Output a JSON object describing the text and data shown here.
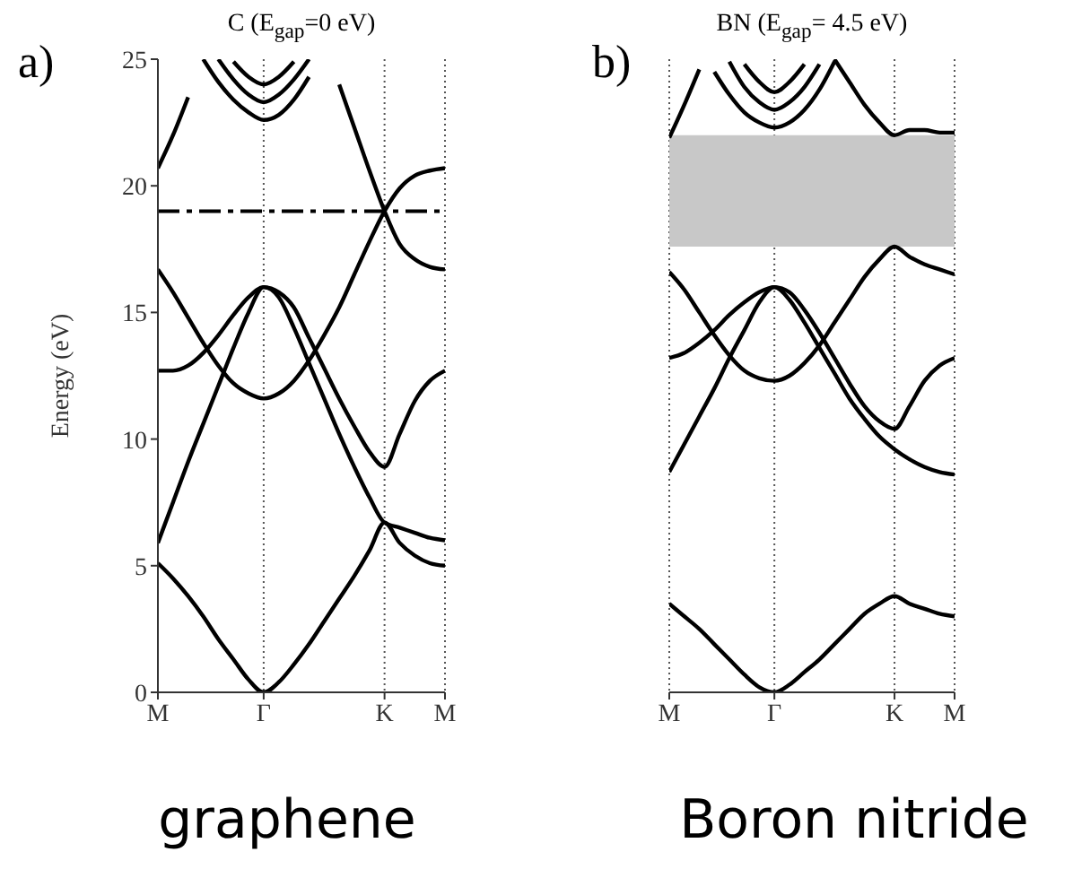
{
  "chart_data": [
    {
      "type": "line",
      "title": "C (E$_{gap}$=0 eV)",
      "ylabel": "Energy (eV)",
      "annotations": [
        "a)",
        "graphene"
      ],
      "categories": [
        "M",
        null,
        null,
        null,
        null,
        null,
        null,
        "Γ",
        null,
        null,
        null,
        null,
        null,
        null,
        null,
        "K",
        null,
        null,
        null,
        "M"
      ],
      "ylim": [
        0,
        25
      ],
      "yticks": [
        0,
        5,
        10,
        15,
        20,
        25
      ],
      "grid": "x",
      "marker": "none",
      "ref_lines": [
        {
          "axis": "y",
          "value": 19,
          "color": "#000000",
          "line_style": "dashed"
        }
      ],
      "series": [
        {
          "color": "#000000",
          "values": [
            5.1,
            4.5,
            3.8,
            3.0,
            2.1,
            1.3,
            0.5,
            0,
            0.4,
            1.1,
            1.9,
            2.8,
            3.7,
            4.6,
            5.6,
            6.7,
            5.9,
            5.4,
            5.1,
            5.0
          ]
        },
        {
          "color": "#000000",
          "values": [
            5.9,
            7.5,
            9.1,
            10.6,
            12.1,
            13.6,
            15.0,
            16.0,
            15.6,
            14.4,
            13.0,
            11.6,
            10.2,
            8.9,
            7.7,
            6.7,
            6.5,
            6.3,
            6.1,
            6.0
          ]
        },
        {
          "color": "#000000",
          "values": [
            12.7,
            12.7,
            12.9,
            13.4,
            14.1,
            14.9,
            15.6,
            16.0,
            15.8,
            15.2,
            14.0,
            12.8,
            11.6,
            10.5,
            9.5,
            8.9,
            10.2,
            11.5,
            12.3,
            12.7
          ]
        },
        {
          "color": "#000000",
          "values": [
            16.7,
            15.8,
            14.8,
            13.8,
            12.9,
            12.2,
            11.8,
            11.6,
            11.8,
            12.3,
            13.1,
            14.1,
            15.2,
            16.5,
            17.8,
            19.0,
            19.9,
            20.4,
            20.6,
            20.7
          ]
        },
        {
          "color": "#000000",
          "values": [
            20.7,
            22.0,
            23.5,
            null,
            null,
            null,
            null,
            null,
            null,
            null,
            null,
            null,
            24.0,
            22.3,
            20.6,
            19.0,
            17.7,
            17.1,
            16.8,
            16.7
          ]
        },
        {
          "color": "#000000",
          "values": [
            null,
            null,
            null,
            25,
            24.1,
            23.4,
            22.9,
            22.6,
            22.8,
            23.4,
            24.3,
            null,
            null,
            null,
            null,
            null,
            null,
            null,
            null,
            null
          ]
        },
        {
          "color": "#000000",
          "values": [
            null,
            null,
            null,
            null,
            25,
            24.2,
            23.6,
            23.3,
            23.6,
            24.2,
            25,
            null,
            null,
            null,
            null,
            null,
            null,
            null,
            null,
            null
          ]
        },
        {
          "color": "#000000",
          "values": [
            null,
            null,
            null,
            null,
            null,
            24.9,
            24.3,
            24.0,
            24.3,
            24.9,
            null,
            null,
            null,
            null,
            null,
            null,
            null,
            null,
            null,
            null
          ]
        }
      ]
    },
    {
      "type": "line",
      "title": "BN (E$_{gap}$= 4.5 eV)",
      "annotations": [
        "b)",
        "Boron nitride"
      ],
      "categories": [
        "M",
        null,
        null,
        null,
        null,
        null,
        null,
        "Γ",
        null,
        null,
        null,
        null,
        null,
        null,
        null,
        "K",
        null,
        null,
        null,
        "M"
      ],
      "ylim": [
        0,
        25
      ],
      "yticks": [
        0,
        5,
        10,
        15,
        20,
        25
      ],
      "tick_labels": "x",
      "grid": "x",
      "marker": "none",
      "bands": [
        {
          "axis": "y",
          "from": 17.6,
          "to": 22.0,
          "color": "#c8c8c8"
        }
      ],
      "series": [
        {
          "color": "#000000",
          "values": [
            3.5,
            3.0,
            2.5,
            1.9,
            1.3,
            0.7,
            0.2,
            0,
            0.3,
            0.8,
            1.3,
            1.9,
            2.5,
            3.1,
            3.5,
            3.8,
            3.5,
            3.3,
            3.1,
            3.0
          ]
        },
        {
          "color": "#000000",
          "values": [
            8.7,
            9.8,
            10.9,
            12.0,
            13.2,
            14.3,
            15.4,
            16.0,
            15.5,
            14.6,
            13.6,
            12.6,
            11.6,
            10.8,
            10.1,
            9.6,
            9.2,
            8.9,
            8.7,
            8.6
          ]
        },
        {
          "color": "#000000",
          "values": [
            13.2,
            13.4,
            13.8,
            14.3,
            14.9,
            15.4,
            15.8,
            16.0,
            15.8,
            15.1,
            14.2,
            13.2,
            12.2,
            11.3,
            10.7,
            10.4,
            11.3,
            12.3,
            12.9,
            13.2
          ]
        },
        {
          "color": "#000000",
          "values": [
            16.6,
            15.9,
            15.0,
            14.1,
            13.3,
            12.7,
            12.4,
            12.3,
            12.5,
            13.0,
            13.7,
            14.6,
            15.5,
            16.4,
            17.1,
            17.6,
            17.2,
            16.9,
            16.7,
            16.5
          ]
        },
        {
          "color": "#000000",
          "values": [
            21.9,
            23.2,
            24.6,
            null,
            null,
            null,
            null,
            null,
            null,
            null,
            null,
            25,
            24.1,
            23.2,
            22.5,
            22.0,
            22.2,
            22.2,
            22.1,
            22.1
          ]
        },
        {
          "color": "#000000",
          "values": [
            null,
            null,
            null,
            24.5,
            23.6,
            22.9,
            22.5,
            22.3,
            22.5,
            23.0,
            23.8,
            24.9,
            null,
            null,
            null,
            null,
            null,
            null,
            null,
            null
          ]
        },
        {
          "color": "#000000",
          "values": [
            null,
            null,
            null,
            null,
            24.9,
            23.9,
            23.3,
            23.0,
            23.3,
            23.9,
            24.8,
            null,
            null,
            null,
            null,
            null,
            null,
            null,
            null,
            null
          ]
        },
        {
          "color": "#000000",
          "values": [
            null,
            null,
            null,
            null,
            null,
            24.8,
            24.1,
            23.7,
            24.1,
            24.8,
            null,
            null,
            null,
            null,
            null,
            null,
            null,
            null,
            null,
            null
          ]
        }
      ]
    }
  ]
}
